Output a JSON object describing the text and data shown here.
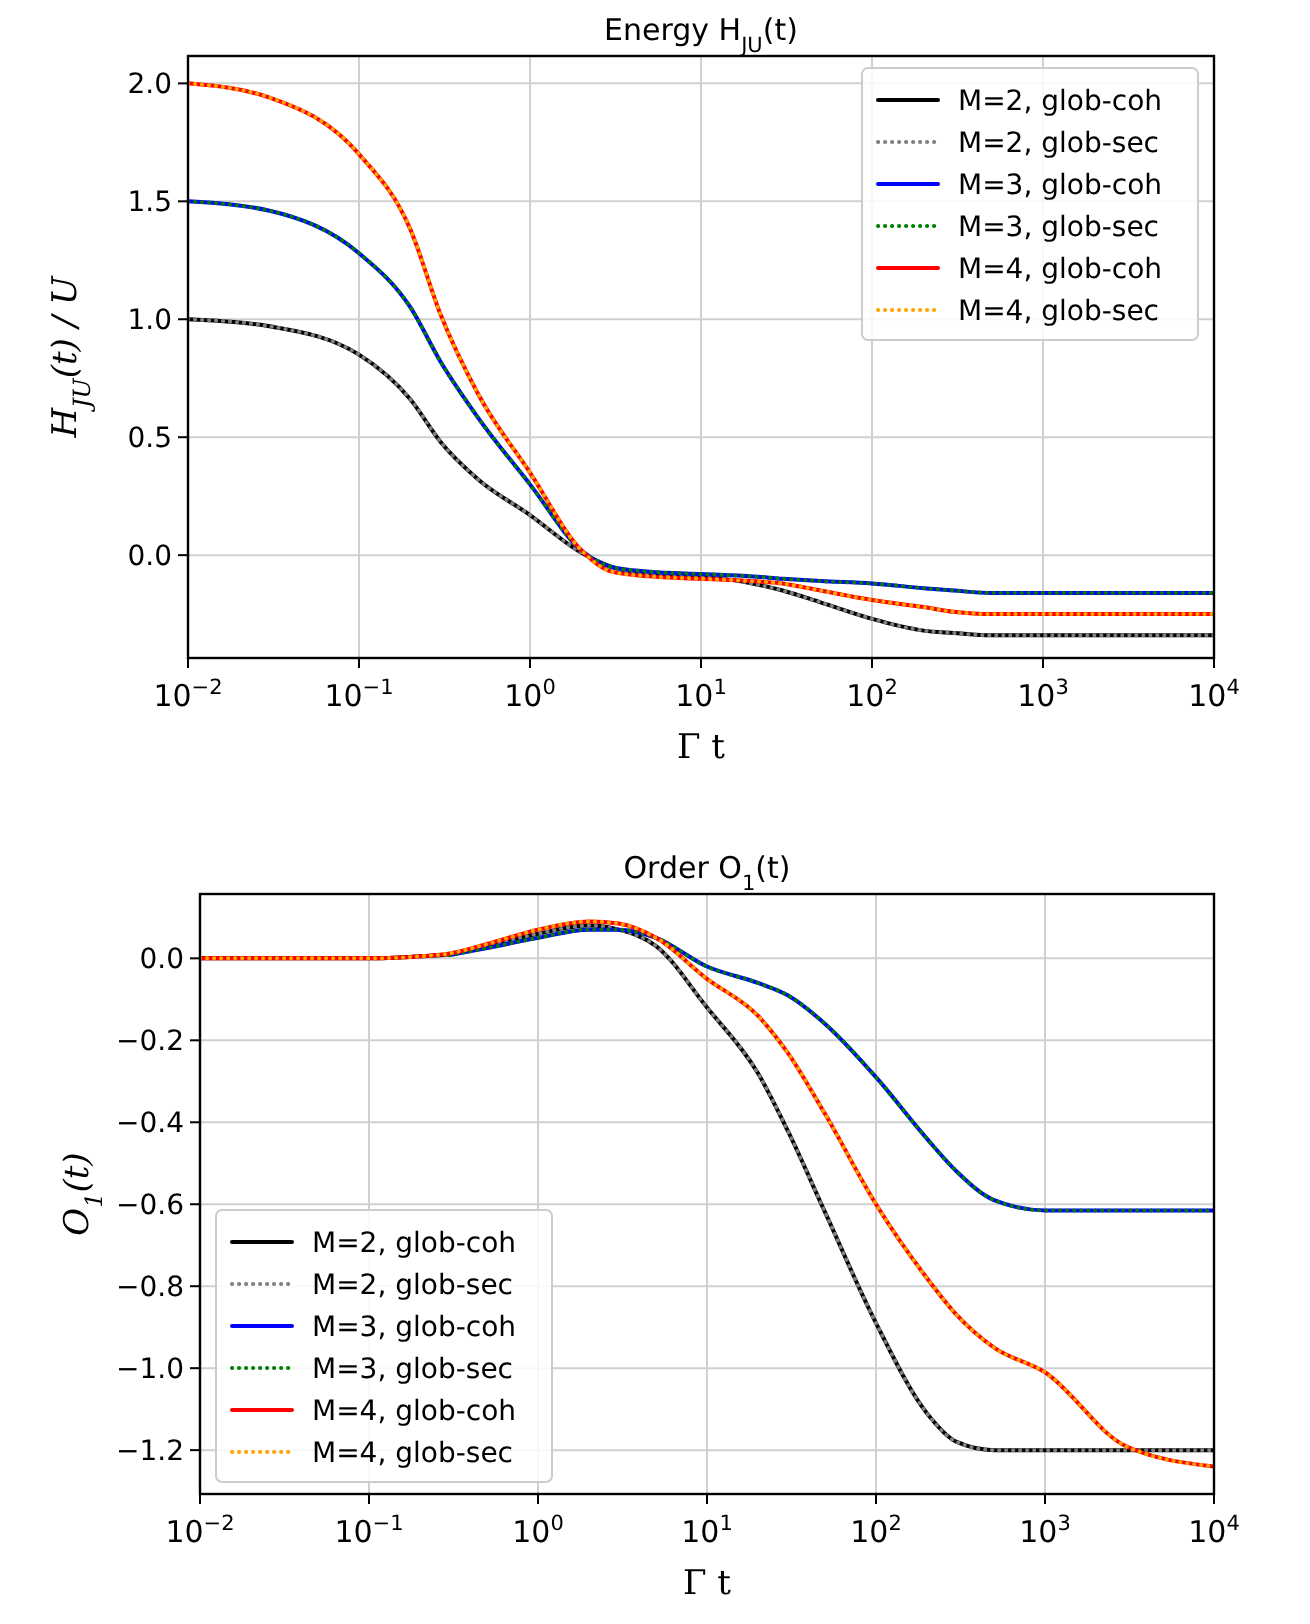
{
  "chart_data": [
    {
      "type": "line",
      "title": "Energy H$_{JU}$(t)",
      "xlabel": "Γ t",
      "ylabel": "H$_{JU}$(t) / U",
      "log": "x",
      "grid": true,
      "legend": "top right",
      "x": [
        0.01,
        0.03,
        0.1,
        0.2,
        0.3,
        0.5,
        1,
        2,
        3,
        5,
        10,
        20,
        30,
        50,
        100,
        200,
        300,
        500,
        1000,
        3000,
        10000
      ],
      "xlim": [
        0.01,
        10000
      ],
      "xticks": [
        {
          "value": 0.01,
          "label": "10$^{−2}$"
        },
        {
          "value": 0.1,
          "label": "10$^{−1}$"
        },
        {
          "value": 1,
          "label": "10$^{0}$"
        },
        {
          "value": 10,
          "label": "10$^{1}$"
        },
        {
          "value": 100,
          "label": "10$^{2}$"
        },
        {
          "value": 1000,
          "label": "10$^{3}$"
        },
        {
          "value": 10000,
          "label": "10$^{4}$"
        }
      ],
      "ylim": [
        -0.436,
        2.116
      ],
      "yticks": [
        {
          "value": 0,
          "label": "0.0"
        },
        {
          "value": 0.5,
          "label": "0.5"
        },
        {
          "value": 1,
          "label": "1.0"
        },
        {
          "value": 1.5,
          "label": "1.5"
        },
        {
          "value": 2,
          "label": "2.0"
        }
      ],
      "series": [
        {
          "name": "M=2, glob-coh",
          "color": "#000000",
          "line_style": "solid",
          "values": [
            1.0,
            0.97,
            0.85,
            0.66,
            0.48,
            0.32,
            0.17,
            0.01,
            -0.05,
            -0.08,
            -0.09,
            -0.12,
            -0.15,
            -0.2,
            -0.27,
            -0.32,
            -0.33,
            -0.34,
            -0.34,
            -0.34,
            -0.34
          ]
        },
        {
          "name": "M=2, glob-sec",
          "color": "#808080",
          "line_style": "dotted",
          "values": [
            1.0,
            0.97,
            0.85,
            0.66,
            0.48,
            0.32,
            0.17,
            0.01,
            -0.05,
            -0.08,
            -0.09,
            -0.12,
            -0.15,
            -0.2,
            -0.27,
            -0.32,
            -0.33,
            -0.34,
            -0.34,
            -0.34,
            -0.34
          ]
        },
        {
          "name": "M=3, glob-coh",
          "color": "#0000ff",
          "line_style": "solid",
          "values": [
            1.5,
            1.46,
            1.28,
            1.05,
            0.82,
            0.58,
            0.3,
            0.02,
            -0.05,
            -0.07,
            -0.08,
            -0.09,
            -0.1,
            -0.11,
            -0.12,
            -0.14,
            -0.15,
            -0.16,
            -0.16,
            -0.16,
            -0.16
          ]
        },
        {
          "name": "M=3, glob-sec",
          "color": "#008000",
          "line_style": "dotted",
          "values": [
            1.5,
            1.46,
            1.28,
            1.05,
            0.82,
            0.58,
            0.3,
            0.02,
            -0.05,
            -0.07,
            -0.08,
            -0.09,
            -0.1,
            -0.11,
            -0.12,
            -0.14,
            -0.15,
            -0.16,
            -0.16,
            -0.16,
            -0.16
          ]
        },
        {
          "name": "M=4, glob-coh",
          "color": "#ff0000",
          "line_style": "solid",
          "values": [
            2.0,
            1.94,
            1.7,
            1.38,
            1.02,
            0.68,
            0.35,
            0.02,
            -0.07,
            -0.09,
            -0.1,
            -0.11,
            -0.12,
            -0.15,
            -0.19,
            -0.22,
            -0.24,
            -0.25,
            -0.25,
            -0.25,
            -0.25
          ]
        },
        {
          "name": "M=4, glob-sec",
          "color": "#ffa500",
          "line_style": "dotted",
          "values": [
            2.0,
            1.94,
            1.7,
            1.38,
            1.02,
            0.68,
            0.35,
            0.02,
            -0.07,
            -0.09,
            -0.1,
            -0.11,
            -0.12,
            -0.15,
            -0.19,
            -0.22,
            -0.24,
            -0.25,
            -0.25,
            -0.25,
            -0.25
          ]
        }
      ]
    },
    {
      "type": "line",
      "title": "Order O$_{1}$(t)",
      "xlabel": "Γ t",
      "ylabel": "O$_{1}$(t)",
      "log": "x",
      "grid": true,
      "legend": "bottom left",
      "x": [
        0.01,
        0.03,
        0.1,
        0.2,
        0.3,
        0.5,
        1,
        2,
        3,
        5,
        10,
        20,
        30,
        50,
        100,
        200,
        300,
        500,
        1000,
        3000,
        10000
      ],
      "xlim": [
        0.01,
        10000
      ],
      "xticks": [
        {
          "value": 0.01,
          "label": "10$^{−2}$"
        },
        {
          "value": 0.1,
          "label": "10$^{−1}$"
        },
        {
          "value": 1,
          "label": "10$^{0}$"
        },
        {
          "value": 10,
          "label": "10$^{1}$"
        },
        {
          "value": 100,
          "label": "10$^{2}$"
        },
        {
          "value": 1000,
          "label": "10$^{3}$"
        },
        {
          "value": 10000,
          "label": "10$^{4}$"
        }
      ],
      "ylim": [
        -1.307,
        0.157
      ],
      "yticks": [
        {
          "value": -1.2,
          "label": "−1.2"
        },
        {
          "value": -1,
          "label": "−1.0"
        },
        {
          "value": -0.8,
          "label": "−0.8"
        },
        {
          "value": -0.6,
          "label": "−0.6"
        },
        {
          "value": -0.4,
          "label": "−0.4"
        },
        {
          "value": -0.2,
          "label": "−0.2"
        },
        {
          "value": 0,
          "label": "0.0"
        }
      ],
      "series": [
        {
          "name": "M=2, glob-coh",
          "color": "#000000",
          "line_style": "solid",
          "values": [
            0,
            0,
            0,
            0.005,
            0.01,
            0.03,
            0.06,
            0.08,
            0.07,
            0.03,
            -0.12,
            -0.28,
            -0.42,
            -0.62,
            -0.89,
            -1.11,
            -1.18,
            -1.2,
            -1.2,
            -1.2,
            -1.2
          ]
        },
        {
          "name": "M=2, glob-sec",
          "color": "#808080",
          "line_style": "dotted",
          "values": [
            0,
            0,
            0,
            0.005,
            0.01,
            0.03,
            0.06,
            0.08,
            0.07,
            0.03,
            -0.12,
            -0.28,
            -0.42,
            -0.62,
            -0.89,
            -1.11,
            -1.18,
            -1.2,
            -1.2,
            -1.2,
            -1.2
          ]
        },
        {
          "name": "M=3, glob-coh",
          "color": "#0000ff",
          "line_style": "solid",
          "values": [
            null,
            null,
            null,
            null,
            0.008,
            0.025,
            0.05,
            0.07,
            0.07,
            0.05,
            -0.02,
            -0.06,
            -0.09,
            -0.16,
            -0.29,
            -0.44,
            -0.52,
            -0.59,
            -0.615,
            -0.615,
            -0.615
          ]
        },
        {
          "name": "M=3, glob-sec",
          "color": "#008000",
          "line_style": "dotted",
          "values": [
            null,
            null,
            null,
            null,
            0.008,
            0.025,
            0.05,
            0.07,
            0.07,
            0.05,
            -0.02,
            -0.06,
            -0.09,
            -0.16,
            -0.29,
            -0.44,
            -0.52,
            -0.59,
            -0.615,
            -0.615,
            -0.615
          ]
        },
        {
          "name": "M=4, glob-coh",
          "color": "#ff0000",
          "line_style": "solid",
          "values": [
            0,
            0,
            0,
            0.005,
            0.012,
            0.035,
            0.07,
            0.09,
            0.085,
            0.05,
            -0.05,
            -0.14,
            -0.23,
            -0.38,
            -0.6,
            -0.78,
            -0.87,
            -0.95,
            -1.01,
            -1.19,
            -1.24
          ]
        },
        {
          "name": "M=4, glob-sec",
          "color": "#ffa500",
          "line_style": "dotted",
          "values": [
            0,
            0,
            0,
            0.005,
            0.012,
            0.035,
            0.07,
            0.09,
            0.085,
            0.05,
            -0.05,
            -0.14,
            -0.23,
            -0.38,
            -0.6,
            -0.78,
            -0.87,
            -0.95,
            -1.01,
            -1.19,
            -1.24
          ]
        }
      ]
    }
  ]
}
